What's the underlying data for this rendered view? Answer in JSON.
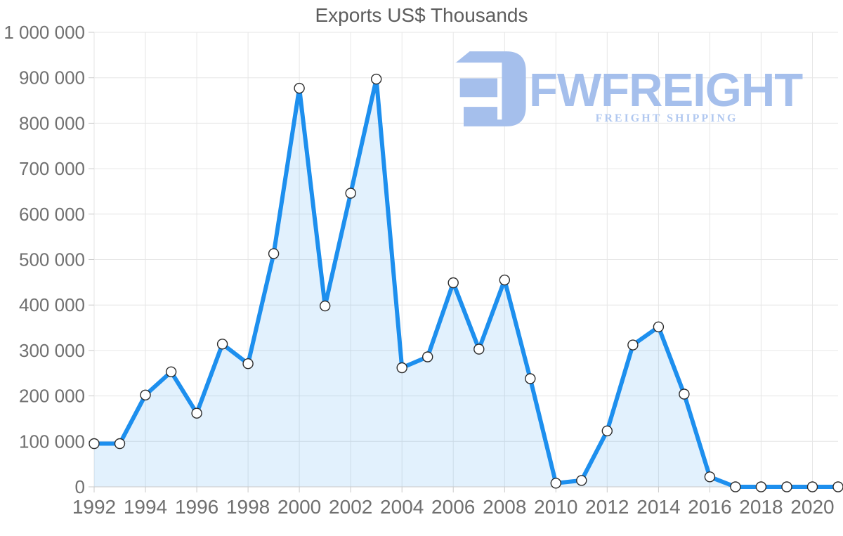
{
  "chart_data": {
    "type": "area",
    "title": "Exports US$ Thousands",
    "unit": "US$ Thousands",
    "x": [
      1992,
      1993,
      1994,
      1995,
      1996,
      1997,
      1998,
      1999,
      2000,
      2001,
      2002,
      2003,
      2004,
      2005,
      2006,
      2007,
      2008,
      2009,
      2010,
      2011,
      2012,
      2013,
      2014,
      2015,
      2016,
      2017,
      2018,
      2019,
      2020,
      2021
    ],
    "values": [
      95000,
      95000,
      202000,
      253000,
      162000,
      314000,
      271000,
      513000,
      877000,
      398000,
      646000,
      897000,
      262000,
      286000,
      449000,
      303000,
      455000,
      238000,
      8000,
      14000,
      123000,
      312000,
      352000,
      204000,
      22000,
      0,
      0,
      0,
      0,
      0
    ],
    "xlabel": "",
    "ylabel": "",
    "ylim": [
      0,
      1000000
    ],
    "grid": true,
    "legend": "none",
    "marker": "circle",
    "x_ticks": [
      {
        "v": 1992,
        "label": "1992"
      },
      {
        "v": 1994,
        "label": "1994"
      },
      {
        "v": 1996,
        "label": "1996"
      },
      {
        "v": 1998,
        "label": "1998"
      },
      {
        "v": 2000,
        "label": "2000"
      },
      {
        "v": 2002,
        "label": "2002"
      },
      {
        "v": 2004,
        "label": "2004"
      },
      {
        "v": 2006,
        "label": "2006"
      },
      {
        "v": 2008,
        "label": "2008"
      },
      {
        "v": 2010,
        "label": "2010"
      },
      {
        "v": 2012,
        "label": "2012"
      },
      {
        "v": 2014,
        "label": "2014"
      },
      {
        "v": 2016,
        "label": "2016"
      },
      {
        "v": 2018,
        "label": "2018"
      },
      {
        "v": 2020,
        "label": "2020"
      }
    ],
    "y_ticks": [
      {
        "v": 0,
        "label": "0"
      },
      {
        "v": 100000,
        "label": "100 000"
      },
      {
        "v": 200000,
        "label": "200 000"
      },
      {
        "v": 300000,
        "label": "300 000"
      },
      {
        "v": 400000,
        "label": "400 000"
      },
      {
        "v": 500000,
        "label": "500 000"
      },
      {
        "v": 600000,
        "label": "600 000"
      },
      {
        "v": 700000,
        "label": "700 000"
      },
      {
        "v": 800000,
        "label": "800 000"
      },
      {
        "v": 900000,
        "label": "900 000"
      },
      {
        "v": 1000000,
        "label": "1 000 000"
      }
    ]
  },
  "watermark": {
    "brand": "FWFREIGHT",
    "tagline": "FREIGHT SHIPPING"
  },
  "colors": {
    "line": "#1d8fee",
    "area": "rgba(29,143,238,0.13)",
    "grid": "#e6e6e6",
    "axis": "#c9c9c9",
    "tick_label": "#707070",
    "title": "#5d5d5d",
    "marker_fill": "#ffffff",
    "marker_stroke": "#2b2b2b",
    "watermark": "#a5bfec",
    "watermark_tagline": "#b1c8f0"
  }
}
